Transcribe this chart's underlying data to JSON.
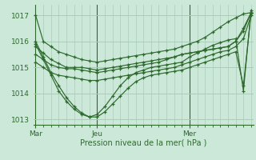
{
  "background_color": "#cce8d8",
  "grid_color": "#aacbbb",
  "line_color": "#2d6a2d",
  "marker_color": "#2d6a2d",
  "axis_label_color": "#2d6a2d",
  "title_color": "#2d6a2d",
  "xlabel": "Pression niveau de la mer( hPa )",
  "ylim": [
    1012.8,
    1017.4
  ],
  "yticks": [
    1013,
    1014,
    1015,
    1016,
    1017
  ],
  "xlim_start": 0,
  "xlim_end": 28,
  "day_labels": [
    "Mar",
    "Jeu",
    "Mer"
  ],
  "day_positions": [
    0,
    8,
    20
  ],
  "series": [
    [
      1017.0,
      1016.0,
      1015.8,
      1015.6,
      1015.5,
      1015.4,
      1015.3,
      1015.25,
      1015.2,
      1015.25,
      1015.3,
      1015.35,
      1015.4,
      1015.45,
      1015.5,
      1015.55,
      1015.6,
      1015.65,
      1015.7,
      1015.8,
      1015.9,
      1016.0,
      1016.15,
      1016.35,
      1016.55,
      1016.75,
      1016.9,
      1017.05,
      1017.1
    ],
    [
      1015.8,
      1015.55,
      1015.3,
      1015.15,
      1015.0,
      1015.0,
      1015.0,
      1014.95,
      1014.9,
      1014.95,
      1015.0,
      1015.05,
      1015.1,
      1015.15,
      1015.2,
      1015.25,
      1015.3,
      1015.35,
      1015.4,
      1015.5,
      1015.55,
      1015.6,
      1015.65,
      1015.7,
      1015.75,
      1015.8,
      1016.0,
      1016.4,
      1017.1
    ],
    [
      1015.5,
      1015.3,
      1015.1,
      1015.0,
      1014.95,
      1014.95,
      1014.9,
      1014.85,
      1014.8,
      1014.85,
      1014.9,
      1014.95,
      1015.0,
      1015.05,
      1015.1,
      1015.15,
      1015.2,
      1015.3,
      1015.4,
      1015.5,
      1015.55,
      1015.6,
      1015.65,
      1015.7,
      1015.75,
      1015.8,
      1016.0,
      1016.5,
      1017.1
    ],
    [
      1015.2,
      1015.0,
      1014.8,
      1014.7,
      1014.65,
      1014.6,
      1014.55,
      1014.5,
      1014.5,
      1014.55,
      1014.6,
      1014.65,
      1014.7,
      1014.75,
      1014.8,
      1014.85,
      1014.9,
      1014.95,
      1015.0,
      1015.1,
      1015.2,
      1015.3,
      1015.4,
      1015.5,
      1015.6,
      1015.65,
      1015.8,
      1016.1,
      1017.0
    ],
    [
      1016.0,
      1015.4,
      1014.8,
      1014.3,
      1013.85,
      1013.5,
      1013.25,
      1013.1,
      1013.1,
      1013.3,
      1013.6,
      1013.9,
      1014.2,
      1014.45,
      1014.6,
      1014.7,
      1014.75,
      1014.8,
      1014.85,
      1014.9,
      1015.0,
      1015.1,
      1015.2,
      1015.3,
      1015.4,
      1015.5,
      1015.6,
      1014.3,
      1017.1
    ],
    [
      1015.9,
      1015.3,
      1014.7,
      1014.1,
      1013.7,
      1013.4,
      1013.2,
      1013.1,
      1013.2,
      1013.5,
      1013.9,
      1014.3,
      1014.6,
      1014.8,
      1014.9,
      1015.0,
      1015.05,
      1015.1,
      1015.15,
      1015.2,
      1015.4,
      1015.55,
      1015.7,
      1015.85,
      1015.95,
      1016.05,
      1016.1,
      1014.1,
      1017.2
    ]
  ]
}
